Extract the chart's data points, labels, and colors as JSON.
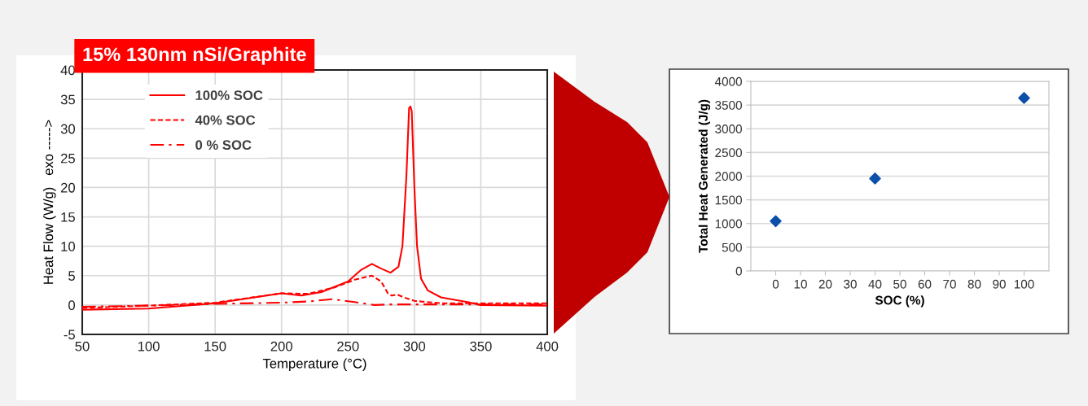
{
  "chart_data": [
    {
      "type": "line",
      "title": "15% 130nm nSi/Graphite",
      "xlabel": "Temperature (°C)",
      "ylabel": "Heat Flow (W/g)   exo ----->",
      "xlim": [
        50,
        400
      ],
      "xticks": [
        50,
        100,
        150,
        200,
        250,
        300,
        350,
        400
      ],
      "ylim": [
        -5,
        40
      ],
      "yticks": [
        -5,
        0,
        5,
        10,
        15,
        20,
        25,
        30,
        35,
        40
      ],
      "grid": true,
      "legend": "top left",
      "marker": "none",
      "series": [
        {
          "name": "100% SOC",
          "color": "#ff0000",
          "line_style": "solid",
          "x": [
            50,
            100,
            150,
            200,
            215,
            230,
            250,
            260,
            268,
            275,
            282,
            288,
            291,
            294,
            296,
            297,
            298,
            300,
            302,
            305,
            310,
            320,
            340,
            350,
            400
          ],
          "values": [
            -0.8,
            -0.6,
            0.3,
            2.0,
            1.6,
            2.2,
            4.0,
            6.0,
            7.0,
            6.2,
            5.5,
            6.5,
            10,
            22,
            33.5,
            33.8,
            33,
            20,
            10,
            4.5,
            2.5,
            1.3,
            0.5,
            0,
            -0.1
          ]
        },
        {
          "name": "40% SOC",
          "color": "#ff0000",
          "line_style": "dashed",
          "x": [
            50,
            100,
            150,
            200,
            220,
            240,
            255,
            268,
            275,
            280,
            283,
            287,
            292,
            300,
            320,
            400
          ],
          "values": [
            -0.5,
            -0.1,
            0.4,
            2.0,
            1.9,
            3.0,
            4.3,
            5.0,
            4.0,
            2.0,
            1.6,
            1.8,
            1.3,
            0.7,
            0.3,
            0.3
          ]
        },
        {
          "name": "0 % SOC",
          "color": "#ff0000",
          "line_style": "dashdot",
          "x": [
            50,
            100,
            150,
            200,
            220,
            238,
            255,
            270,
            280,
            300,
            350,
            400
          ],
          "values": [
            -0.3,
            -0.1,
            0.2,
            0.4,
            0.6,
            1.0,
            0.5,
            0.0,
            0.1,
            0.1,
            0.1,
            0.1
          ]
        }
      ]
    },
    {
      "type": "scatter",
      "xlabel": "SOC (%)",
      "ylabel": "Total Heat Generated (J/g)",
      "xlim": [
        -10,
        110
      ],
      "xticks": [
        0,
        10,
        20,
        30,
        40,
        50,
        60,
        70,
        80,
        90,
        100
      ],
      "ylim": [
        0,
        4000
      ],
      "yticks": [
        0,
        500,
        1000,
        1500,
        2000,
        2500,
        3000,
        3500,
        4000
      ],
      "grid": "y",
      "marker": "diamond",
      "series": [
        {
          "color": "#0a4fa8",
          "x": [
            0,
            40,
            100
          ],
          "values": [
            1050,
            1950,
            3650
          ]
        }
      ]
    }
  ]
}
